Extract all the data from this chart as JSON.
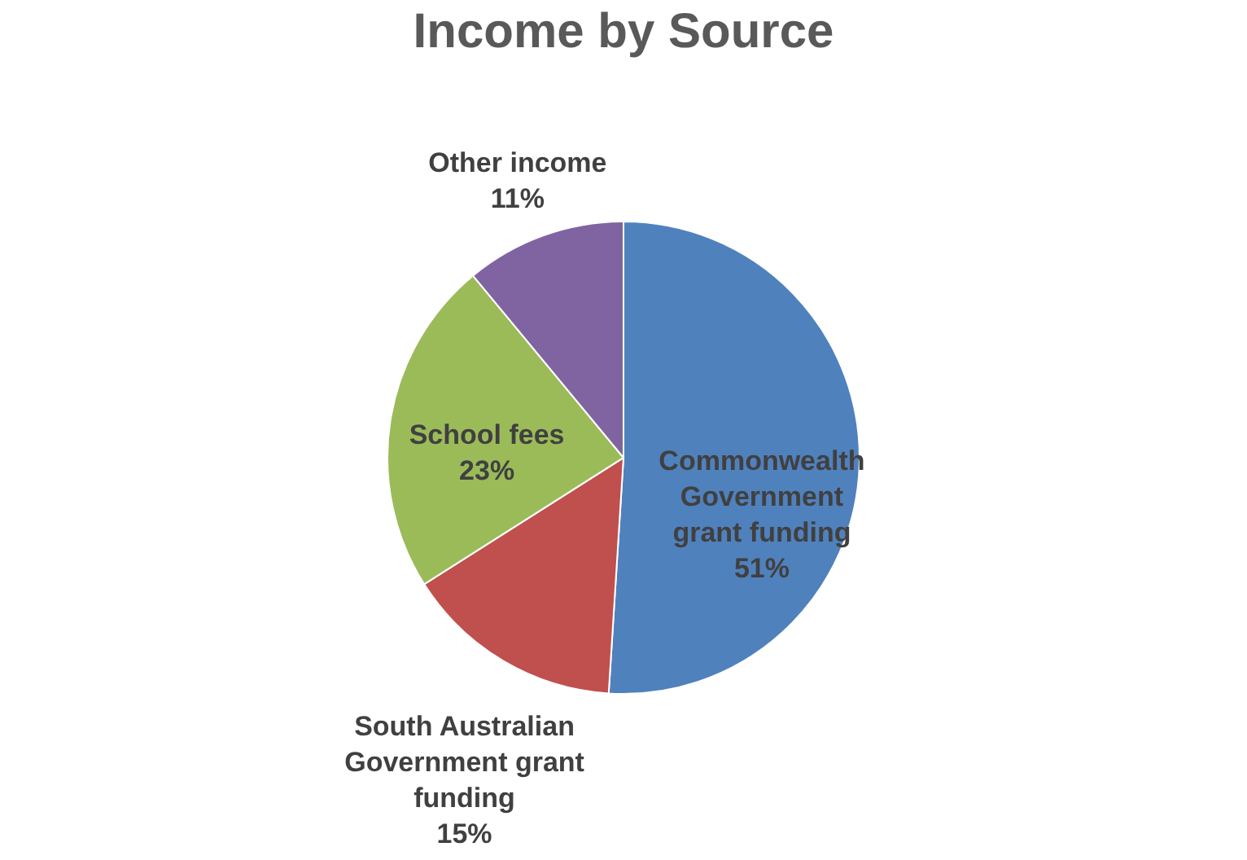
{
  "chart_data": {
    "type": "pie",
    "title": "Income by Source",
    "categories": [
      "Commonwealth Government grant funding",
      "South Australian Government grant funding",
      "School fees",
      "Other income"
    ],
    "values": [
      51,
      15,
      23,
      11
    ],
    "colors": [
      "#4f81bd",
      "#c0504d",
      "#9bbb59",
      "#8064a2"
    ],
    "value_labels": [
      "51%",
      "15%",
      "23%",
      "11%"
    ],
    "legend": false
  }
}
